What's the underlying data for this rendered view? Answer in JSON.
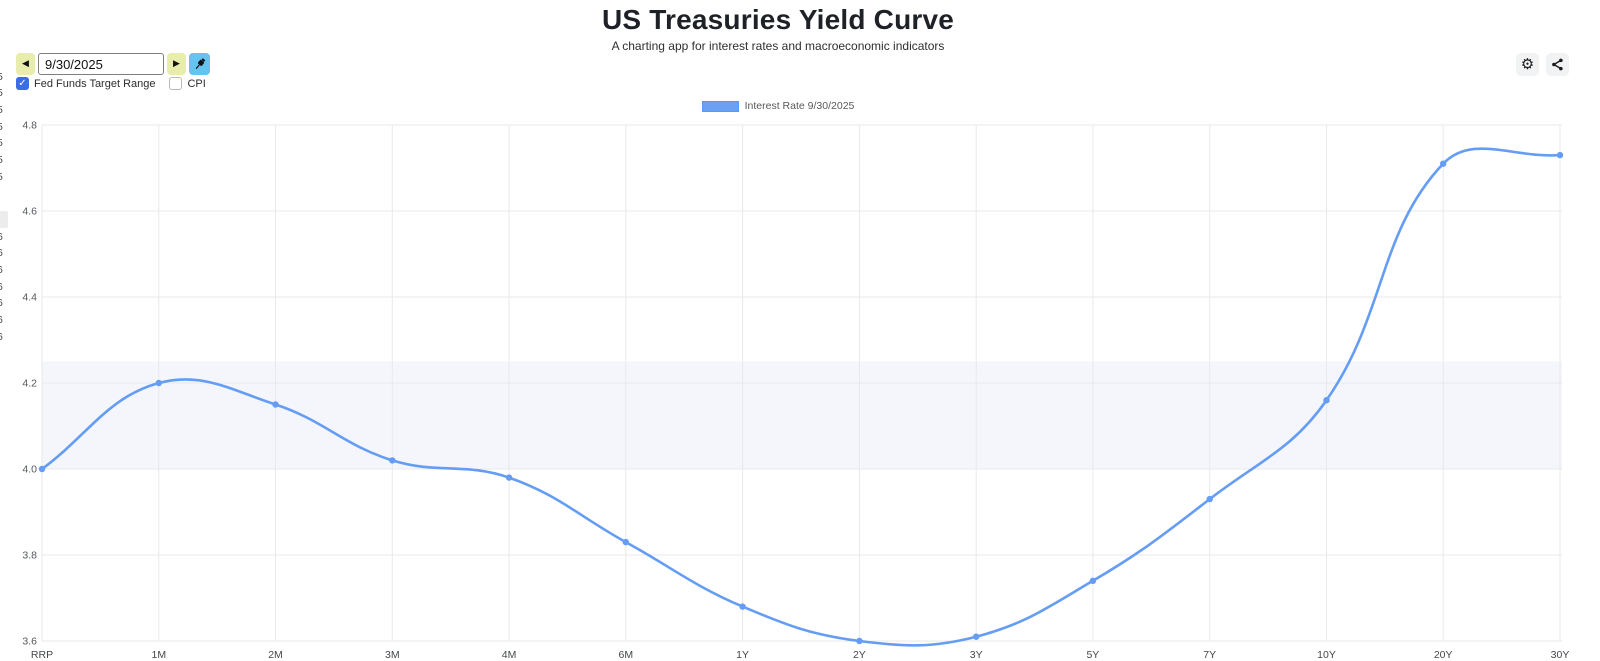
{
  "header": {
    "title": "US Treasuries Yield Curve",
    "subtitle": "A charting app for interest rates and macroeconomic indicators"
  },
  "controls": {
    "prev_glyph": "◀",
    "next_glyph": "▶",
    "date_value": "9/30/2025",
    "pin_icon": "pushpin",
    "settings_glyph": "⚙",
    "share_icon": "share-nodes",
    "checkboxes": [
      {
        "id": "fed-funds-target-range",
        "label": "Fed Funds Target Range",
        "checked": true
      },
      {
        "id": "cpi",
        "label": "CPI",
        "checked": false
      }
    ]
  },
  "legend": {
    "label": "Interest Rate 9/30/2025",
    "swatch_color": "#6ba1f3"
  },
  "left_clipped_list": {
    "top_digits": [
      "5",
      "5",
      "5",
      "5",
      "5",
      "5",
      "5"
    ],
    "bottom_digits": [
      "6",
      "6",
      "6",
      "6",
      "6",
      "6",
      "6"
    ]
  },
  "colors": {
    "accent_blue": "#649df3",
    "band_fill": "#f4f6fc",
    "grid": "#e8e9eb",
    "nav_button": "#e9edab",
    "pin_button": "#64c3ef",
    "checkbox_checked": "#3d6ce5",
    "ytick_label": "#54575b",
    "xtick_label": "#45484c"
  },
  "chart_data": {
    "type": "line",
    "title": "US Treasuries Yield Curve",
    "categories": [
      "RRP",
      "1M",
      "2M",
      "3M",
      "4M",
      "6M",
      "1Y",
      "2Y",
      "3Y",
      "5Y",
      "7Y",
      "10Y",
      "20Y",
      "30Y"
    ],
    "series": [
      {
        "name": "Interest Rate 9/30/2025",
        "color": "#649df3",
        "values": [
          4.0,
          4.2,
          4.15,
          4.02,
          3.98,
          3.83,
          3.68,
          3.6,
          3.61,
          3.74,
          3.93,
          4.16,
          4.71,
          4.73
        ]
      }
    ],
    "band": {
      "name": "Fed Funds Target Range",
      "from": 4.0,
      "to": 4.25,
      "color": "#f4f6fc"
    },
    "xlabel": "",
    "ylabel": "",
    "ylim": [
      3.6,
      4.8
    ],
    "ytick_step": 0.2,
    "grid": true,
    "legend_position": "top",
    "line_tension": 0.4
  }
}
